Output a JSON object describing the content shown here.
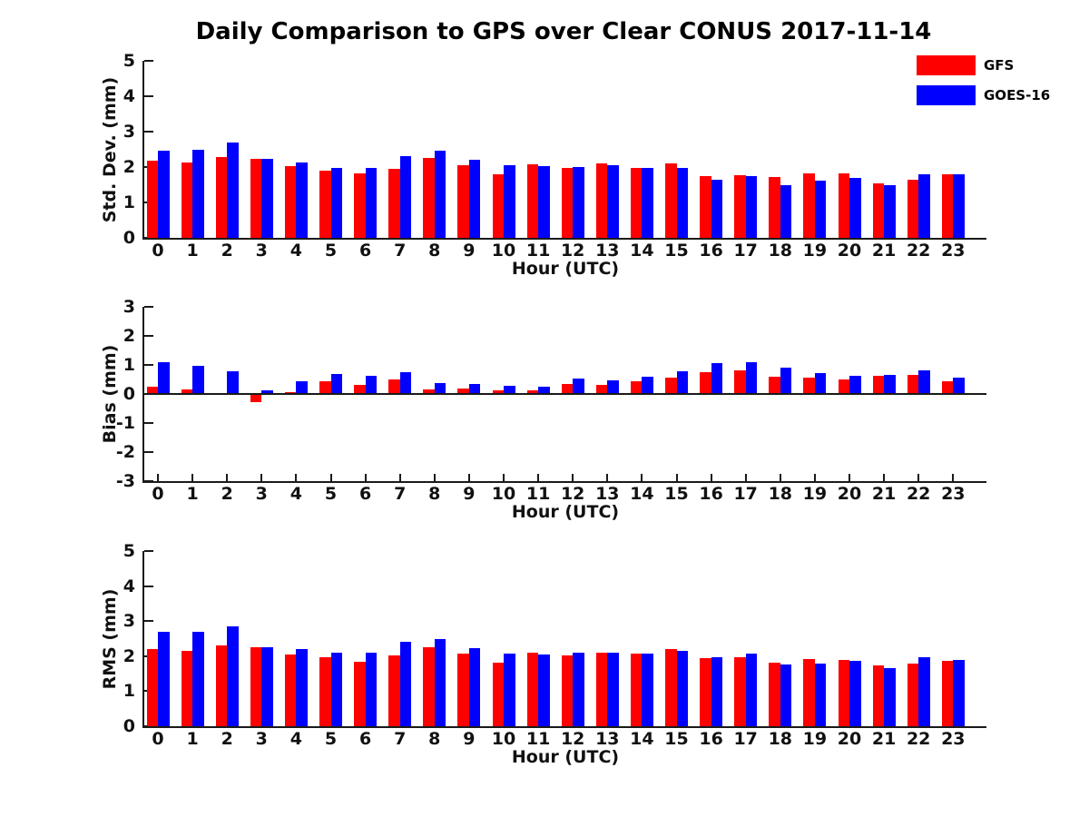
{
  "title": "Daily Comparison to GPS over Clear CONUS 2017-11-14",
  "legend": {
    "position": "top-right",
    "items": [
      {
        "label": "GFS",
        "color": "#ff0000"
      },
      {
        "label": "GOES-16",
        "color": "#0000ff"
      }
    ]
  },
  "chart_data": [
    {
      "type": "bar",
      "title": "",
      "xlabel": "Hour (UTC)",
      "ylabel": "Std. Dev. (mm)",
      "ylim": [
        0,
        5
      ],
      "yticks": [
        0,
        1,
        2,
        3,
        4,
        5
      ],
      "grid": false,
      "categories": [
        "0",
        "1",
        "2",
        "3",
        "4",
        "5",
        "6",
        "7",
        "8",
        "9",
        "10",
        "11",
        "12",
        "13",
        "14",
        "15",
        "16",
        "17",
        "18",
        "19",
        "20",
        "21",
        "22",
        "23"
      ],
      "series": [
        {
          "name": "GFS",
          "color": "#ff0000",
          "values": [
            2.17,
            2.13,
            2.27,
            2.23,
            2.03,
            1.9,
            1.83,
            1.95,
            2.25,
            2.06,
            1.8,
            2.08,
            1.98,
            2.1,
            1.97,
            2.1,
            1.75,
            1.78,
            1.72,
            1.82,
            1.82,
            1.55,
            1.65,
            1.8
          ]
        },
        {
          "name": "GOES-16",
          "color": "#0000ff",
          "values": [
            2.45,
            2.5,
            2.7,
            2.23,
            2.13,
            1.97,
            1.98,
            2.3,
            2.45,
            2.2,
            2.05,
            2.02,
            2.0,
            2.05,
            1.97,
            1.97,
            1.65,
            1.75,
            1.48,
            1.62,
            1.7,
            1.48,
            1.8,
            1.8
          ]
        }
      ]
    },
    {
      "type": "bar",
      "title": "",
      "xlabel": "Hour (UTC)",
      "ylabel": "Bias (mm)",
      "ylim": [
        -3,
        3
      ],
      "yticks": [
        -3,
        -2,
        -1,
        0,
        1,
        2,
        3
      ],
      "grid": false,
      "categories": [
        "0",
        "1",
        "2",
        "3",
        "4",
        "5",
        "6",
        "7",
        "8",
        "9",
        "10",
        "11",
        "12",
        "13",
        "14",
        "15",
        "16",
        "17",
        "18",
        "19",
        "20",
        "21",
        "22",
        "23"
      ],
      "series": [
        {
          "name": "GFS",
          "color": "#ff0000",
          "values": [
            0.25,
            0.16,
            0.03,
            -0.28,
            0.05,
            0.44,
            0.31,
            0.5,
            0.16,
            0.19,
            0.11,
            0.13,
            0.35,
            0.3,
            0.45,
            0.56,
            0.74,
            0.8,
            0.6,
            0.56,
            0.5,
            0.62,
            0.65,
            0.44
          ]
        },
        {
          "name": "GOES-16",
          "color": "#0000ff",
          "values": [
            1.1,
            0.98,
            0.78,
            0.14,
            0.43,
            0.7,
            0.64,
            0.74,
            0.36,
            0.35,
            0.28,
            0.24,
            0.52,
            0.46,
            0.6,
            0.79,
            1.05,
            1.09,
            0.9,
            0.72,
            0.64,
            0.65,
            0.8,
            0.55
          ]
        }
      ]
    },
    {
      "type": "bar",
      "title": "",
      "xlabel": "Hour (UTC)",
      "ylabel": "RMS (mm)",
      "ylim": [
        0,
        5
      ],
      "yticks": [
        0,
        1,
        2,
        3,
        4,
        5
      ],
      "grid": false,
      "categories": [
        "0",
        "1",
        "2",
        "3",
        "4",
        "5",
        "6",
        "7",
        "8",
        "9",
        "10",
        "11",
        "12",
        "13",
        "14",
        "15",
        "16",
        "17",
        "18",
        "19",
        "20",
        "21",
        "22",
        "23"
      ],
      "series": [
        {
          "name": "GFS",
          "color": "#ff0000",
          "values": [
            2.2,
            2.15,
            2.3,
            2.25,
            2.05,
            1.97,
            1.85,
            2.02,
            2.25,
            2.08,
            1.82,
            2.1,
            2.02,
            2.1,
            2.06,
            2.2,
            1.95,
            1.98,
            1.82,
            1.92,
            1.9,
            1.73,
            1.8,
            1.87
          ]
        },
        {
          "name": "GOES-16",
          "color": "#0000ff",
          "values": [
            2.7,
            2.7,
            2.85,
            2.25,
            2.2,
            2.1,
            2.1,
            2.42,
            2.5,
            2.22,
            2.07,
            2.04,
            2.1,
            2.1,
            2.08,
            2.15,
            1.98,
            2.06,
            1.75,
            1.8,
            1.87,
            1.67,
            1.97,
            1.9
          ]
        }
      ]
    }
  ]
}
